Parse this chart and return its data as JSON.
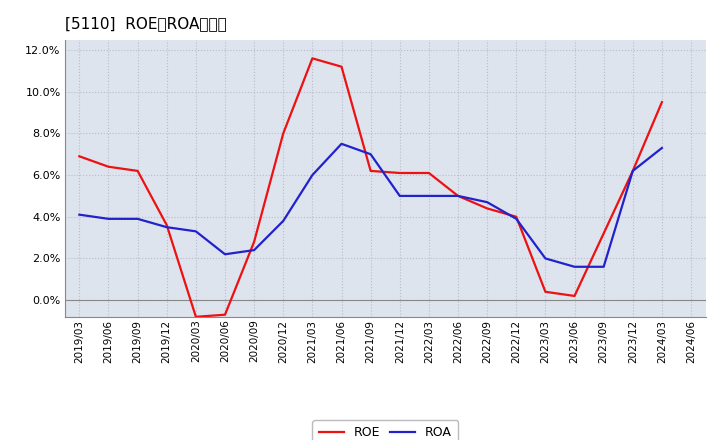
{
  "title": "[5110]  ROE、ROAの推移",
  "x_labels": [
    "2019/03",
    "2019/06",
    "2019/09",
    "2019/12",
    "2020/03",
    "2020/06",
    "2020/09",
    "2020/12",
    "2021/03",
    "2021/06",
    "2021/09",
    "2021/12",
    "2022/03",
    "2022/06",
    "2022/09",
    "2022/12",
    "2023/03",
    "2023/06",
    "2023/09",
    "2023/12",
    "2024/03",
    "2024/06"
  ],
  "ROE": [
    6.9,
    6.4,
    6.2,
    3.6,
    -0.8,
    -0.7,
    2.8,
    8.0,
    11.6,
    11.2,
    6.2,
    6.1,
    6.1,
    5.0,
    4.4,
    4.0,
    0.4,
    0.2,
    3.2,
    6.2,
    9.5,
    null
  ],
  "ROA": [
    4.1,
    3.9,
    3.9,
    3.5,
    3.3,
    2.2,
    2.4,
    3.8,
    6.0,
    7.5,
    7.0,
    5.0,
    5.0,
    5.0,
    4.7,
    3.9,
    2.0,
    1.6,
    1.6,
    6.2,
    7.3,
    null
  ],
  "ylim": [
    -0.8,
    12.5
  ],
  "yticks": [
    0.0,
    2.0,
    4.0,
    6.0,
    8.0,
    10.0,
    12.0
  ],
  "roe_color": "#ee1111",
  "roa_color": "#2222cc",
  "grid_color": "#bbbbcc",
  "bg_color": "#ffffff",
  "plot_bg_color": "#dde4ee",
  "title_fontsize": 11,
  "legend_fontsize": 9,
  "line_width": 1.6,
  "tick_fontsize": 7.5,
  "ytick_fontsize": 8
}
